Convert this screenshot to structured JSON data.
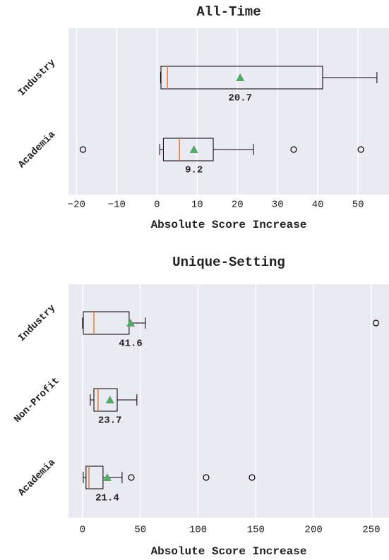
{
  "chart_data": [
    {
      "type": "box",
      "title": "All-Time",
      "xlabel": "Absolute Score Increase",
      "categories": [
        "Industry",
        "Academia"
      ],
      "boxes": [
        {
          "whislo": 0.9,
          "q1": 1.0,
          "med": 2.6,
          "q3": 41.2,
          "whishi": 54.7,
          "mean": 20.7,
          "fliers": []
        },
        {
          "whislo": 0.7,
          "q1": 1.6,
          "med": 5.6,
          "q3": 14.0,
          "whishi": 24.0,
          "mean": 9.2,
          "fliers": [
            -18.4,
            34.0,
            50.7
          ]
        }
      ],
      "xlim": [
        -22,
        57.7
      ],
      "xticks": [
        {
          "value": -20,
          "label": "−20"
        },
        {
          "value": -10,
          "label": "−10"
        },
        0,
        10,
        20,
        30,
        40,
        50
      ],
      "grid": true,
      "median_color": "#e07b39",
      "mean_color": "#55a868"
    },
    {
      "type": "box",
      "title": "Unique-Setting",
      "xlabel": "Absolute Score Increase",
      "categories": [
        "Industry",
        "Non-Profit",
        "Academia"
      ],
      "boxes": [
        {
          "whislo": 0,
          "q1": 0.6,
          "med": 9.8,
          "q3": 40.3,
          "whishi": 54.4,
          "mean": 41.6,
          "fliers": [
            254
          ]
        },
        {
          "whislo": 6.7,
          "q1": 9.8,
          "med": 13.4,
          "q3": 30,
          "whishi": 47,
          "mean": 23.7,
          "fliers": []
        },
        {
          "whislo": 0.6,
          "q1": 3,
          "med": 5.5,
          "q3": 17.7,
          "whishi": 34.2,
          "mean": 21.4,
          "fliers": [
            42.2,
            107,
            146.7
          ]
        }
      ],
      "xlim": [
        -12.2,
        265.3
      ],
      "xticks": [
        0,
        50,
        100,
        150,
        200,
        250
      ],
      "grid": true,
      "median_color": "#e07b39",
      "mean_color": "#55a868"
    }
  ]
}
